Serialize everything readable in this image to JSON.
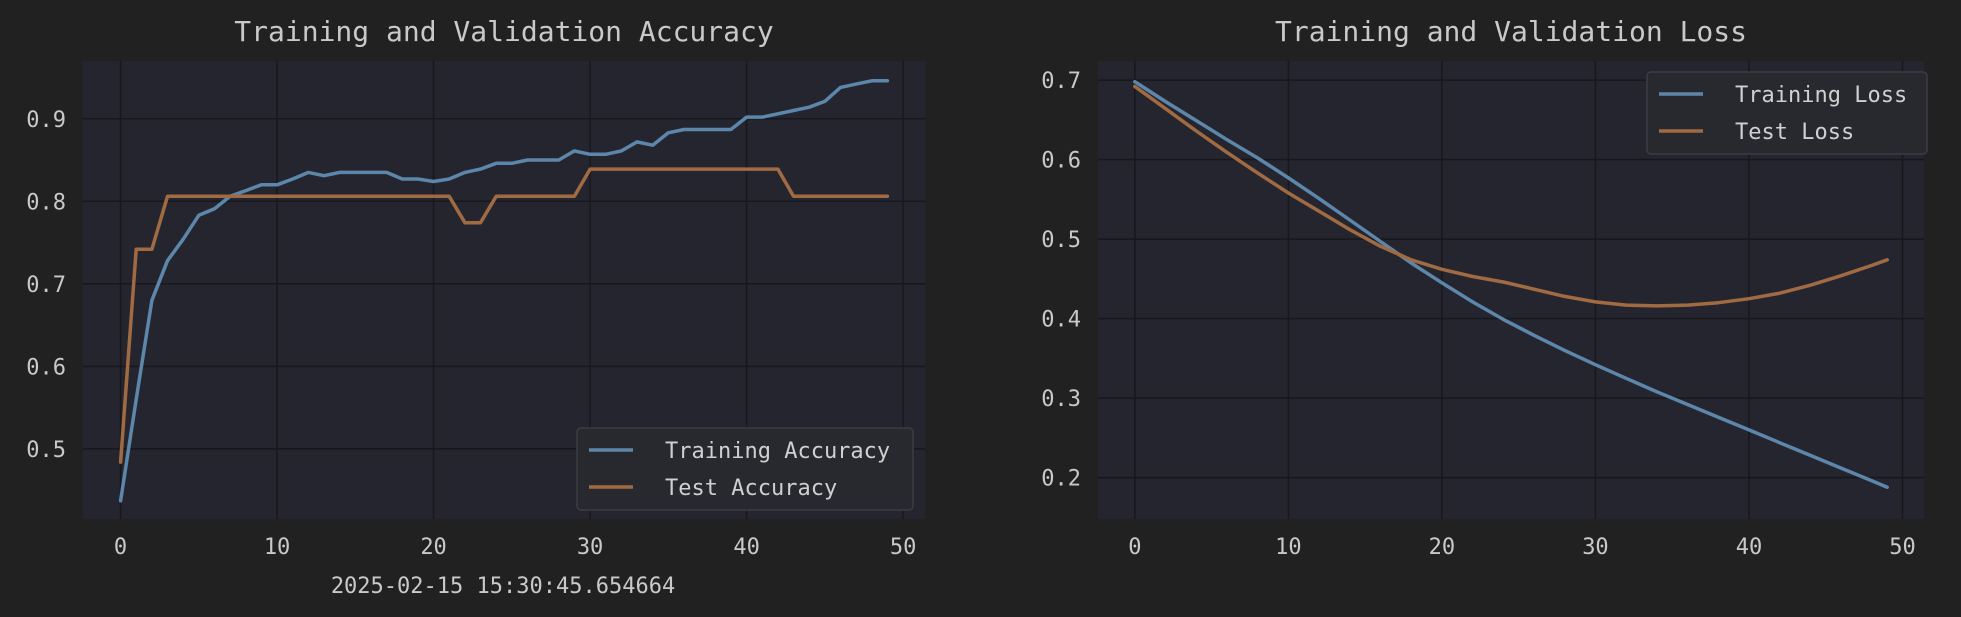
{
  "footer_timestamp": "2025-02-15 15:30:45.654664",
  "colors": {
    "figure_bg": "#212121",
    "axes_bg": "#25252f",
    "grid": "#17171c",
    "training": "#5d87aa",
    "test": "#a06b42",
    "text": "#c9c9c9"
  },
  "chart_data": [
    {
      "type": "line",
      "title": "Training and Validation Accuracy",
      "xlabel": "",
      "ylabel": "",
      "xlim": [
        -2.4,
        51.4
      ],
      "ylim": [
        0.415,
        0.97
      ],
      "xticks": [
        0,
        10,
        20,
        30,
        40,
        50
      ],
      "xtick_labels": [
        "0",
        "10",
        "20",
        "30",
        "40",
        "50"
      ],
      "yticks": [
        0.5,
        0.6,
        0.7,
        0.8,
        0.9
      ],
      "ytick_labels": [
        "0.5",
        "0.6",
        "0.7",
        "0.8",
        "0.9"
      ],
      "legend_position": "lower-right",
      "grid": true,
      "series": [
        {
          "name": "Training Accuracy",
          "color": "#5d87aa",
          "x": [
            0,
            1,
            2,
            3,
            4,
            5,
            6,
            7,
            8,
            9,
            10,
            11,
            12,
            13,
            14,
            15,
            16,
            17,
            18,
            19,
            20,
            21,
            22,
            23,
            24,
            25,
            26,
            27,
            28,
            29,
            30,
            31,
            32,
            33,
            34,
            35,
            36,
            37,
            38,
            39,
            40,
            41,
            42,
            43,
            44,
            45,
            46,
            47,
            48,
            49
          ],
          "values": [
            0.437,
            0.56,
            0.68,
            0.728,
            0.754,
            0.783,
            0.791,
            0.806,
            0.813,
            0.82,
            0.82,
            0.827,
            0.835,
            0.831,
            0.835,
            0.835,
            0.835,
            0.835,
            0.827,
            0.827,
            0.824,
            0.827,
            0.835,
            0.839,
            0.846,
            0.846,
            0.85,
            0.85,
            0.85,
            0.861,
            0.857,
            0.857,
            0.861,
            0.872,
            0.868,
            0.883,
            0.887,
            0.887,
            0.887,
            0.887,
            0.902,
            0.902,
            0.906,
            0.91,
            0.914,
            0.921,
            0.938,
            0.942,
            0.946,
            0.946
          ]
        },
        {
          "name": "Test Accuracy",
          "color": "#a06b42",
          "x": [
            0,
            1,
            2,
            3,
            4,
            5,
            6,
            7,
            8,
            9,
            10,
            11,
            12,
            13,
            14,
            15,
            16,
            17,
            18,
            19,
            20,
            21,
            22,
            23,
            24,
            25,
            26,
            27,
            28,
            29,
            30,
            31,
            32,
            33,
            34,
            35,
            36,
            37,
            38,
            39,
            40,
            41,
            42,
            43,
            44,
            45,
            46,
            47,
            48,
            49
          ],
          "values": [
            0.484,
            0.742,
            0.742,
            0.806,
            0.806,
            0.806,
            0.806,
            0.806,
            0.806,
            0.806,
            0.806,
            0.806,
            0.806,
            0.806,
            0.806,
            0.806,
            0.806,
            0.806,
            0.806,
            0.806,
            0.806,
            0.806,
            0.774,
            0.774,
            0.806,
            0.806,
            0.806,
            0.806,
            0.806,
            0.806,
            0.839,
            0.839,
            0.839,
            0.839,
            0.839,
            0.839,
            0.839,
            0.839,
            0.839,
            0.839,
            0.839,
            0.839,
            0.839,
            0.806,
            0.806,
            0.806,
            0.806,
            0.806,
            0.806,
            0.806
          ]
        }
      ]
    },
    {
      "type": "line",
      "title": "Training and Validation Loss",
      "xlabel": "",
      "ylabel": "",
      "xlim": [
        -2.4,
        51.4
      ],
      "ylim": [
        0.148,
        0.724
      ],
      "xticks": [
        0,
        10,
        20,
        30,
        40,
        50
      ],
      "xtick_labels": [
        "0",
        "10",
        "20",
        "30",
        "40",
        "50"
      ],
      "yticks": [
        0.2,
        0.3,
        0.4,
        0.5,
        0.6,
        0.7
      ],
      "ytick_labels": [
        "0.2",
        "0.3",
        "0.4",
        "0.5",
        "0.6",
        "0.7"
      ],
      "legend_position": "upper-right",
      "grid": true,
      "series": [
        {
          "name": "Training Loss",
          "color": "#5d87aa",
          "x": [
            0,
            2,
            4,
            6,
            8,
            10,
            12,
            14,
            16,
            18,
            20,
            22,
            24,
            26,
            28,
            30,
            32,
            34,
            36,
            38,
            40,
            42,
            44,
            46,
            48,
            49
          ],
          "values": [
            0.698,
            0.673,
            0.649,
            0.625,
            0.602,
            0.577,
            0.551,
            0.524,
            0.497,
            0.47,
            0.445,
            0.421,
            0.399,
            0.379,
            0.36,
            0.342,
            0.325,
            0.308,
            0.292,
            0.276,
            0.26,
            0.244,
            0.228,
            0.212,
            0.196,
            0.188
          ]
        },
        {
          "name": "Test Loss",
          "color": "#a06b42",
          "x": [
            0,
            2,
            4,
            6,
            8,
            10,
            12,
            14,
            16,
            18,
            20,
            22,
            24,
            26,
            28,
            30,
            32,
            34,
            36,
            38,
            40,
            42,
            44,
            46,
            48,
            49
          ],
          "values": [
            0.692,
            0.664,
            0.636,
            0.609,
            0.583,
            0.558,
            0.535,
            0.512,
            0.491,
            0.474,
            0.462,
            0.453,
            0.446,
            0.437,
            0.428,
            0.421,
            0.417,
            0.416,
            0.417,
            0.42,
            0.425,
            0.432,
            0.442,
            0.454,
            0.467,
            0.474
          ]
        }
      ]
    }
  ]
}
